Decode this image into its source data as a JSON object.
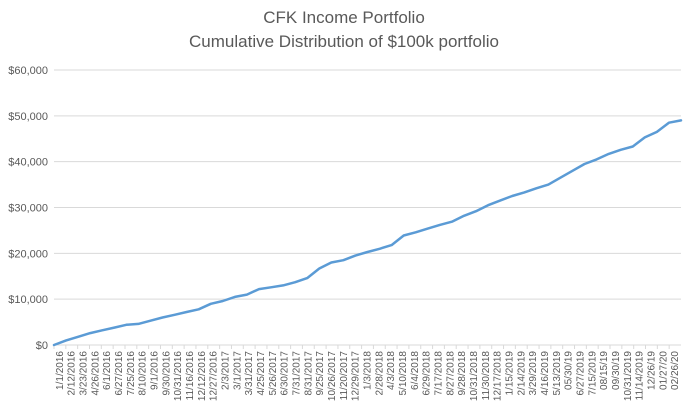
{
  "chart_data": {
    "type": "line",
    "title": "CFK Income Portfolio",
    "subtitle": "Cumulative Distribution of $100k portfolio",
    "xlabel": "",
    "ylabel": "",
    "ylim": [
      0,
      60000
    ],
    "y_ticks": [
      0,
      10000,
      20000,
      30000,
      40000,
      50000,
      60000
    ],
    "y_tick_labels": [
      "$0",
      "$10,000",
      "$20,000",
      "$30,000",
      "$40,000",
      "$50,000",
      "$60,000"
    ],
    "grid": true,
    "legend": "none",
    "x_tick_labels": [
      "1/1/2016",
      "2/12/2016",
      "3/23/2016",
      "4/26/2016",
      "6/1/2016",
      "6/27/2016",
      "7/25/2016",
      "8/10/2016",
      "9/1/2016",
      "9/30/2016",
      "10/31/2016",
      "11/16/2016",
      "12/12/2016",
      "12/27/2016",
      "2/3/2017",
      "3/1/2017",
      "3/31/2017",
      "4/25/2017",
      "5/26/2017",
      "6/30/2017",
      "7/31/2017",
      "8/31/2017",
      "9/25/2017",
      "10/26/2017",
      "11/20/2017",
      "12/29/2017",
      "1/3/2018",
      "2/28/2018",
      "4/3/2018",
      "5/10/2018",
      "6/4/2018",
      "6/29/2018",
      "7/17/2018",
      "8/27/2018",
      "9/28/2018",
      "10/31/2018",
      "11/30/2018",
      "12/17/2018",
      "1/15/2019",
      "2/14/2019",
      "3/29/2019",
      "4/16/2019",
      "5/13/2019",
      "05/30/19",
      "6/27/2019",
      "7/15/2019",
      "08/15/19",
      "09/30/19",
      "10/31/2019",
      "11/14/2019",
      "12/26/19",
      "01/27/20",
      "02/26/20"
    ],
    "series": [
      {
        "color": "#5b9bd5",
        "values": [
          0,
          1000,
          1800,
          2600,
          3200,
          3800,
          4400,
          4600,
          5300,
          6000,
          6600,
          7200,
          7800,
          9000,
          9600,
          10500,
          11000,
          12200,
          12600,
          13000,
          13700,
          14600,
          16700,
          18000,
          18500,
          19500,
          20300,
          21000,
          21800,
          23900,
          24600,
          25400,
          26200,
          26900,
          28200,
          29200,
          30500,
          31500,
          32500,
          33300,
          34200,
          35000,
          36500,
          38000,
          39500,
          40500,
          41700,
          42600,
          43300,
          45300,
          46500,
          48500,
          49000
        ]
      }
    ]
  }
}
